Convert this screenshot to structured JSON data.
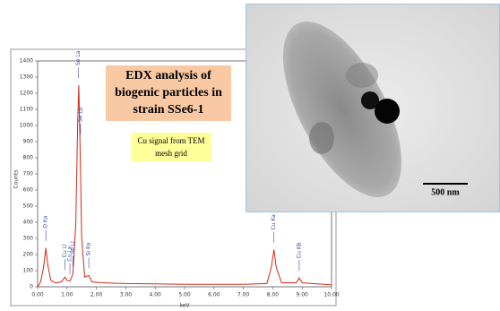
{
  "chart_data": {
    "type": "line",
    "title": "EDX analysis of biogenic particles in strain SSe6-1",
    "note": "Cu signal from TEM mesh grid",
    "x_label": "keV",
    "y_label": "Counts",
    "color": "#d02818",
    "x": [
      0,
      0.1,
      0.2,
      0.28,
      0.35,
      0.45,
      0.6,
      0.8,
      0.93,
      1.0,
      1.1,
      1.2,
      1.3,
      1.36,
      1.4,
      1.44,
      1.5,
      1.6,
      1.74,
      1.85,
      2.2,
      3,
      4,
      5,
      6,
      7,
      7.8,
      7.95,
      8.04,
      8.12,
      8.3,
      8.8,
      8.9,
      9.0,
      10
    ],
    "values": [
      0,
      30,
      120,
      240,
      130,
      40,
      25,
      30,
      60,
      40,
      35,
      80,
      400,
      1000,
      1250,
      900,
      300,
      60,
      70,
      30,
      25,
      20,
      18,
      15,
      15,
      15,
      20,
      120,
      230,
      120,
      25,
      25,
      55,
      25,
      12
    ],
    "peaks": [
      {
        "label": "O Ka",
        "x": 0.28
      },
      {
        "label": "Cu Ll",
        "x": 0.93
      },
      {
        "label": "Cu La",
        "x": 1.1
      },
      {
        "label": "Se Ll",
        "x": 1.2
      },
      {
        "label": "Se La",
        "x": 1.38
      },
      {
        "label": "Se Lb",
        "x": 1.46
      },
      {
        "label": "Si Ka",
        "x": 1.74
      },
      {
        "label": "Cu Ka",
        "x": 8.04
      },
      {
        "label": "Cu Kb",
        "x": 8.9
      }
    ],
    "xlim": [
      0,
      10
    ],
    "xticks": [
      {
        "value": 0,
        "label": "0.00"
      },
      {
        "value": 1,
        "label": "1.00"
      },
      {
        "value": 2,
        "label": "2.00"
      },
      {
        "value": 3,
        "label": "3.00"
      },
      {
        "value": 4,
        "label": "4.00"
      },
      {
        "value": 5,
        "label": "5.00"
      },
      {
        "value": 6,
        "label": "6.00"
      },
      {
        "value": 7,
        "label": "7.00"
      },
      {
        "value": 8,
        "label": "8.00"
      },
      {
        "value": 9,
        "label": "9.00"
      },
      {
        "value": 10,
        "label": "10.00"
      }
    ],
    "ylim": [
      0,
      1400
    ],
    "yticks": [
      0,
      100,
      200,
      300,
      400,
      500,
      600,
      700,
      800,
      900,
      1000,
      1100,
      1200,
      1300,
      1400
    ]
  },
  "image": {
    "scale_bar": "500 nm"
  }
}
